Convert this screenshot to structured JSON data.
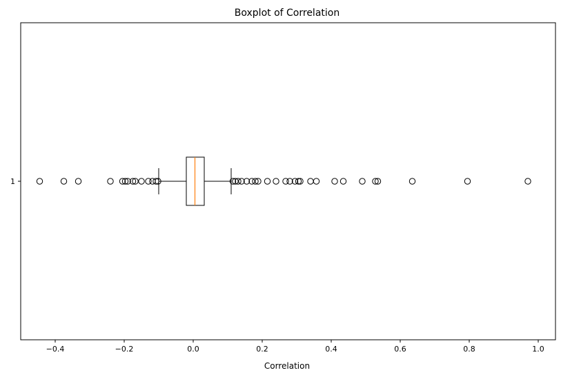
{
  "chart_data": {
    "type": "boxplot",
    "orientation": "horizontal",
    "title": "Boxplot of Correlation",
    "xlabel": "Correlation",
    "ylabel": "",
    "xlim": [
      -0.5,
      1.05
    ],
    "x_ticks": [
      -0.4,
      -0.2,
      0.0,
      0.2,
      0.4,
      0.6,
      0.8,
      1.0
    ],
    "x_tick_labels": [
      "−0.4",
      "−0.2",
      "0.0",
      "0.2",
      "0.4",
      "0.6",
      "0.8",
      "1.0"
    ],
    "y_ticks": [
      "1"
    ],
    "grid": false,
    "boxes": [
      {
        "category": "1",
        "whisker_low": -0.1,
        "q1": -0.02,
        "median": 0.005,
        "q3": 0.032,
        "whisker_high": 0.11,
        "outliers": [
          -0.445,
          -0.375,
          -0.333,
          -0.24,
          -0.205,
          -0.197,
          -0.19,
          -0.175,
          -0.168,
          -0.15,
          -0.13,
          -0.118,
          -0.108,
          -0.102,
          0.115,
          0.122,
          0.13,
          0.14,
          0.155,
          0.17,
          0.18,
          0.188,
          0.215,
          0.24,
          0.268,
          0.28,
          0.295,
          0.305,
          0.31,
          0.34,
          0.357,
          0.41,
          0.435,
          0.49,
          0.528,
          0.535,
          0.635,
          0.795,
          0.97
        ]
      }
    ],
    "colors": {
      "box": "#000000",
      "median": "#ff7f0e",
      "outlier_edge": "#000000",
      "outlier_face": "none"
    }
  }
}
